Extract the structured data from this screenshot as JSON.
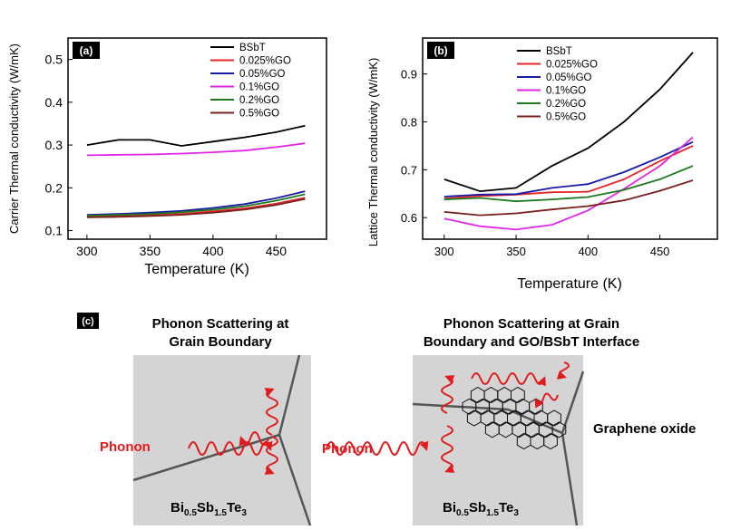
{
  "colors": {
    "BSbT": "#000000",
    "GO0025": "#e8262a",
    "GO005": "#1a1aa8",
    "GO01": "#e226e6",
    "GO02": "#1e7a1e",
    "GO05": "#7a1f1f",
    "phonon": "#e31a1c",
    "grain": "#d4d4d4",
    "boundary": "#555555"
  },
  "chart_data": [
    {
      "type": "line",
      "panel_label": "(a)",
      "xlabel": "Temperature (K)",
      "ylabel": "Carrier Thermal conductivity (W/mK)",
      "xlim": [
        285,
        490
      ],
      "ylim": [
        0.08,
        0.55
      ],
      "xticks": [
        300,
        350,
        400,
        450
      ],
      "yticks": [
        0.1,
        0.2,
        0.3,
        0.4,
        0.5
      ],
      "x": [
        300,
        325,
        350,
        375,
        400,
        425,
        450,
        473
      ],
      "series": [
        {
          "name": "BSbT",
          "color_key": "BSbT",
          "values": [
            0.3,
            0.312,
            0.312,
            0.298,
            0.308,
            0.318,
            0.33,
            0.345
          ]
        },
        {
          "name": "0.025%GO",
          "color_key": "GO0025",
          "values": [
            0.133,
            0.134,
            0.136,
            0.139,
            0.145,
            0.152,
            0.163,
            0.177
          ]
        },
        {
          "name": "0.05%GO",
          "color_key": "GO005",
          "values": [
            0.137,
            0.139,
            0.142,
            0.146,
            0.153,
            0.162,
            0.176,
            0.192
          ]
        },
        {
          "name": "0.1%GO",
          "color_key": "GO01",
          "values": [
            0.276,
            0.277,
            0.278,
            0.28,
            0.283,
            0.287,
            0.295,
            0.304
          ]
        },
        {
          "name": "0.2%GO",
          "color_key": "GO02",
          "values": [
            0.135,
            0.137,
            0.139,
            0.143,
            0.149,
            0.157,
            0.17,
            0.185
          ]
        },
        {
          "name": "0.5%GO",
          "color_key": "GO05",
          "values": [
            0.131,
            0.132,
            0.134,
            0.137,
            0.142,
            0.149,
            0.16,
            0.174
          ]
        }
      ]
    },
    {
      "type": "line",
      "panel_label": "(b)",
      "xlabel": "Temperature (K)",
      "ylabel": "Lattice Thermal conductivity (W/mK)",
      "xlim": [
        285,
        490
      ],
      "ylim": [
        0.555,
        0.975
      ],
      "xticks": [
        300,
        350,
        400,
        450
      ],
      "yticks": [
        0.6,
        0.7,
        0.8,
        0.9
      ],
      "x": [
        300,
        325,
        350,
        375,
        400,
        425,
        450,
        473
      ],
      "series": [
        {
          "name": "BSbT",
          "color_key": "BSbT",
          "values": [
            0.68,
            0.655,
            0.662,
            0.708,
            0.745,
            0.8,
            0.868,
            0.945
          ]
        },
        {
          "name": "0.025%GO",
          "color_key": "GO0025",
          "values": [
            0.64,
            0.645,
            0.648,
            0.653,
            0.654,
            0.68,
            0.718,
            0.75
          ]
        },
        {
          "name": "0.05%GO",
          "color_key": "GO005",
          "values": [
            0.644,
            0.648,
            0.649,
            0.662,
            0.67,
            0.695,
            0.726,
            0.758
          ]
        },
        {
          "name": "0.1%GO",
          "color_key": "GO01",
          "values": [
            0.598,
            0.582,
            0.575,
            0.585,
            0.615,
            0.66,
            0.708,
            0.768
          ]
        },
        {
          "name": "0.2%GO",
          "color_key": "GO02",
          "values": [
            0.638,
            0.641,
            0.634,
            0.638,
            0.643,
            0.658,
            0.68,
            0.708
          ]
        },
        {
          "name": "0.5%GO",
          "color_key": "GO05",
          "values": [
            0.612,
            0.605,
            0.609,
            0.617,
            0.624,
            0.636,
            0.656,
            0.678
          ]
        }
      ]
    }
  ],
  "diagram": {
    "panel_label": "(c)",
    "left_title_line1": "Phonon Scattering at",
    "left_title_line2": "Grain Boundary",
    "right_title_line1": "Phonon Scattering at Grain",
    "right_title_line2": "Boundary and GO/BSbT Interface",
    "phonon_label": "Phonon",
    "graphene_label": "Graphene oxide",
    "material": {
      "base": "Bi",
      "sub1": "0.5",
      "mid": "Sb",
      "sub2": "1.5",
      "end": "Te",
      "sub3": "3"
    }
  }
}
